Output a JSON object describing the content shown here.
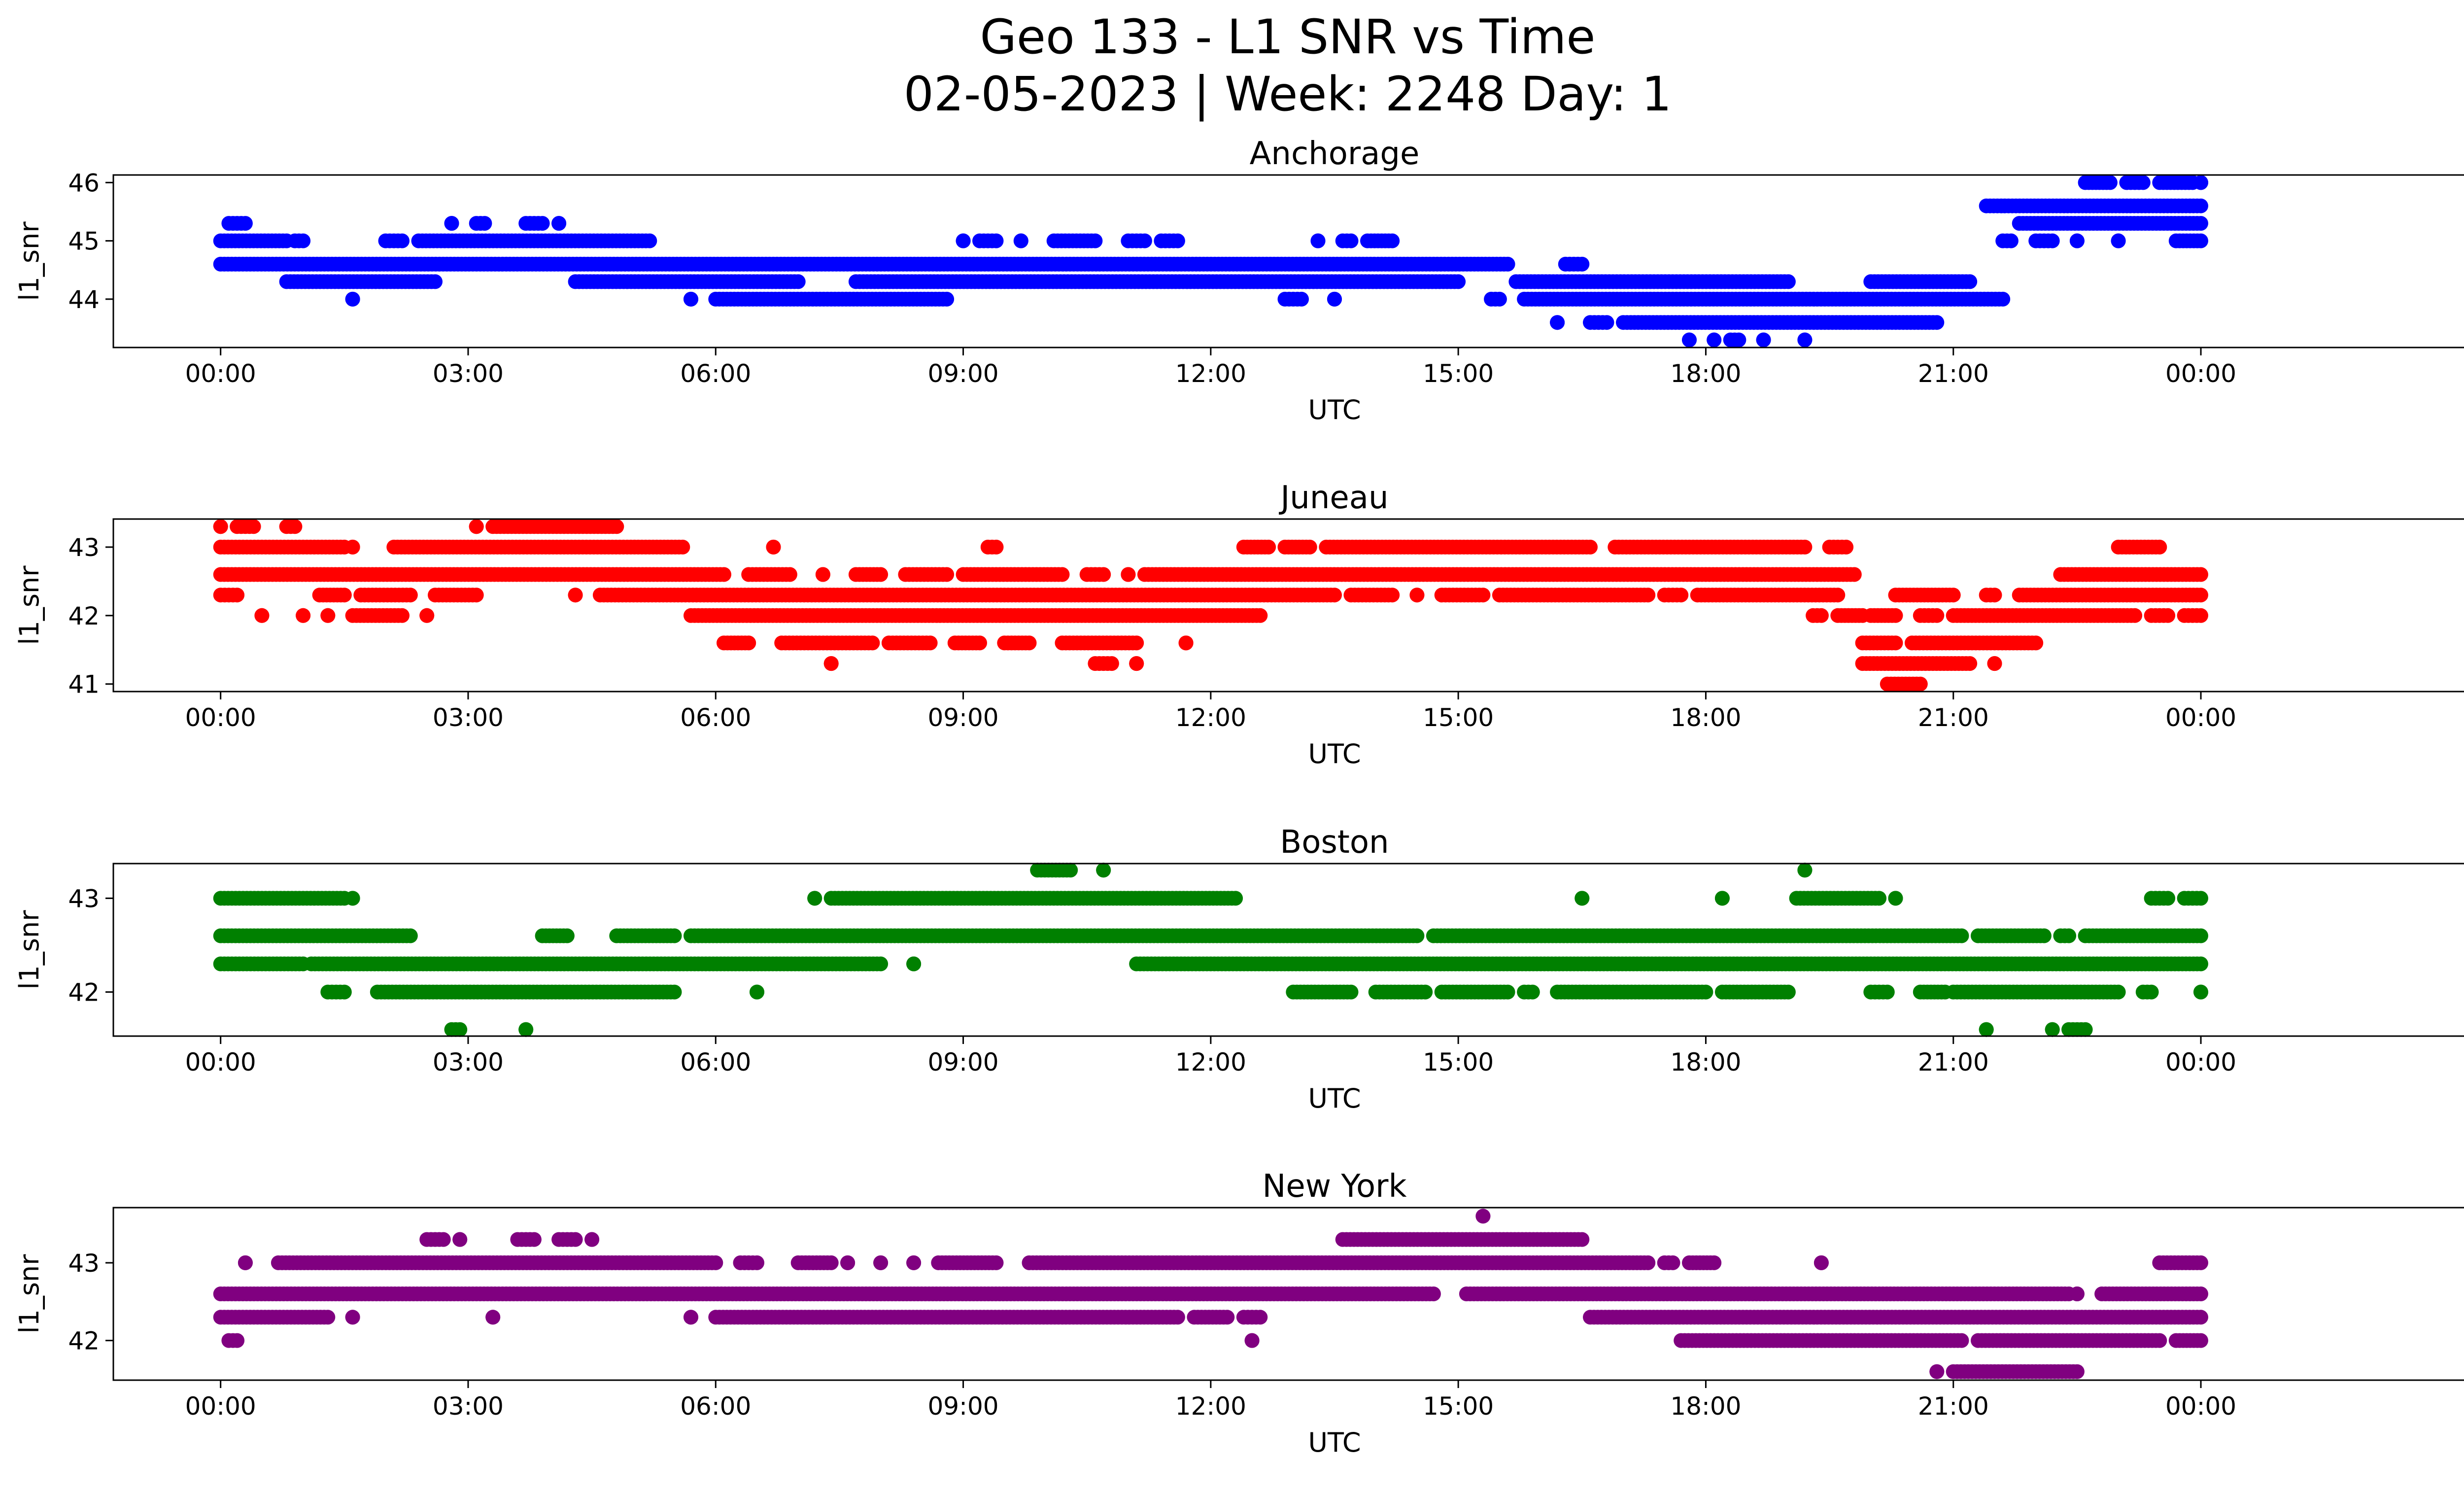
{
  "figure": {
    "title_line1": "Geo 133 - L1 SNR vs Time",
    "title_line2": "02-05-2023 | Week: 2248 Day: 1"
  },
  "chart_data": [
    {
      "type": "scatter",
      "title": "Anchorage",
      "xlabel": "UTC",
      "ylabel": "l1_snr",
      "color": "#0000ff",
      "xlim": [
        -1.3,
        28.3
      ],
      "ylim": [
        43.17,
        46.13
      ],
      "xticks": [
        0,
        3,
        6,
        9,
        12,
        15,
        18,
        21,
        24
      ],
      "xtick_labels": [
        "00:00",
        "03:00",
        "06:00",
        "09:00",
        "12:00",
        "15:00",
        "18:00",
        "21:00",
        "00:00"
      ],
      "yticks": [
        44,
        45,
        46
      ],
      "series": [
        {
          "y": 44.6,
          "ranges": [
            [
              0,
              15.6
            ],
            [
              16.3,
              16.5
            ]
          ]
        },
        {
          "y": 45.0,
          "ranges": [
            [
              0,
              0.8
            ],
            [
              0.9,
              1.0
            ],
            [
              2.0,
              2.2
            ],
            [
              2.4,
              5.2
            ],
            [
              9.0,
              9.0
            ],
            [
              9.2,
              9.4
            ],
            [
              9.7,
              9.7
            ],
            [
              10.1,
              10.6
            ],
            [
              11.0,
              11.2
            ],
            [
              11.4,
              11.6
            ],
            [
              13.3,
              13.3
            ],
            [
              13.6,
              13.7
            ],
            [
              13.9,
              14.2
            ],
            [
              21.6,
              21.7
            ],
            [
              22.0,
              22.2
            ],
            [
              22.5,
              22.5
            ],
            [
              23.0,
              23.0
            ],
            [
              23.7,
              24.0
            ]
          ]
        },
        {
          "y": 44.3,
          "ranges": [
            [
              0.8,
              2.6
            ],
            [
              4.3,
              7.0
            ],
            [
              7.7,
              15.0
            ],
            [
              15.7,
              19.0
            ],
            [
              20.0,
              21.2
            ]
          ]
        },
        {
          "y": 44.0,
          "ranges": [
            [
              1.6,
              1.6
            ],
            [
              5.7,
              5.7
            ],
            [
              6.0,
              8.8
            ],
            [
              12.9,
              13.1
            ],
            [
              13.5,
              13.5
            ],
            [
              15.4,
              15.5
            ],
            [
              15.8,
              21.6
            ]
          ]
        },
        {
          "y": 43.6,
          "ranges": [
            [
              16.2,
              16.2
            ],
            [
              16.6,
              16.8
            ],
            [
              17.0,
              20.8
            ]
          ]
        },
        {
          "y": 43.3,
          "ranges": [
            [
              17.8,
              17.8
            ],
            [
              18.1,
              18.1
            ],
            [
              18.3,
              18.4
            ],
            [
              18.7,
              18.7
            ],
            [
              19.2,
              19.2
            ]
          ]
        },
        {
          "y": 45.3,
          "ranges": [
            [
              0.1,
              0.3
            ],
            [
              2.8,
              2.8
            ],
            [
              3.1,
              3.2
            ],
            [
              3.7,
              3.9
            ],
            [
              4.1,
              4.1
            ],
            [
              21.8,
              24.0
            ]
          ]
        },
        {
          "y": 45.6,
          "ranges": [
            [
              21.4,
              24.0
            ]
          ]
        },
        {
          "y": 46.0,
          "ranges": [
            [
              22.6,
              22.9
            ],
            [
              23.1,
              23.3
            ],
            [
              23.5,
              23.9
            ],
            [
              24.0,
              24.0
            ]
          ]
        }
      ]
    },
    {
      "type": "scatter",
      "title": "Juneau",
      "xlabel": "UTC",
      "ylabel": "l1_snr",
      "color": "#ff0000",
      "xlim": [
        -1.3,
        28.3
      ],
      "ylim": [
        40.89,
        43.41
      ],
      "xticks": [
        0,
        3,
        6,
        9,
        12,
        15,
        18,
        21,
        24
      ],
      "xtick_labels": [
        "00:00",
        "03:00",
        "06:00",
        "09:00",
        "12:00",
        "15:00",
        "18:00",
        "21:00",
        "00:00"
      ],
      "yticks": [
        41,
        42,
        43
      ],
      "series": [
        {
          "y": 42.6,
          "ranges": [
            [
              0,
              6.1
            ],
            [
              6.4,
              6.9
            ],
            [
              7.3,
              7.3
            ],
            [
              7.7,
              8.0
            ],
            [
              8.3,
              8.8
            ],
            [
              9.0,
              10.2
            ],
            [
              10.5,
              10.7
            ],
            [
              11.0,
              11.0
            ],
            [
              11.2,
              19.8
            ],
            [
              22.3,
              24.0
            ]
          ]
        },
        {
          "y": 43.0,
          "ranges": [
            [
              0,
              1.5
            ],
            [
              1.6,
              1.6
            ],
            [
              2.1,
              5.6
            ],
            [
              6.7,
              6.7
            ],
            [
              9.3,
              9.4
            ],
            [
              12.4,
              12.7
            ],
            [
              12.9,
              13.2
            ],
            [
              13.4,
              16.6
            ],
            [
              16.9,
              19.2
            ],
            [
              19.5,
              19.7
            ],
            [
              23.0,
              23.5
            ]
          ]
        },
        {
          "y": 42.3,
          "ranges": [
            [
              0,
              0.2
            ],
            [
              1.2,
              1.5
            ],
            [
              1.7,
              2.3
            ],
            [
              2.6,
              3.1
            ],
            [
              4.3,
              4.3
            ],
            [
              4.6,
              13.5
            ],
            [
              13.7,
              14.2
            ],
            [
              14.5,
              14.5
            ],
            [
              14.8,
              15.3
            ],
            [
              15.5,
              17.3
            ],
            [
              17.5,
              17.7
            ],
            [
              17.9,
              19.6
            ],
            [
              20.3,
              21.0
            ],
            [
              21.4,
              21.5
            ],
            [
              21.8,
              24.0
            ]
          ]
        },
        {
          "y": 42.0,
          "ranges": [
            [
              0.5,
              0.5
            ],
            [
              1.0,
              1.0
            ],
            [
              1.3,
              1.3
            ],
            [
              1.6,
              2.2
            ],
            [
              2.5,
              2.5
            ],
            [
              5.7,
              12.6
            ],
            [
              19.3,
              19.4
            ],
            [
              19.6,
              19.9
            ],
            [
              20.0,
              20.3
            ],
            [
              20.6,
              20.8
            ],
            [
              21.0,
              23.2
            ],
            [
              23.4,
              23.6
            ],
            [
              23.8,
              24.0
            ]
          ]
        },
        {
          "y": 41.6,
          "ranges": [
            [
              6.1,
              6.4
            ],
            [
              6.8,
              7.9
            ],
            [
              8.1,
              8.6
            ],
            [
              8.9,
              9.2
            ],
            [
              9.5,
              9.8
            ],
            [
              10.2,
              11.1
            ],
            [
              11.7,
              11.7
            ],
            [
              19.9,
              20.3
            ],
            [
              20.5,
              22.0
            ]
          ]
        },
        {
          "y": 41.3,
          "ranges": [
            [
              7.4,
              7.4
            ],
            [
              10.6,
              10.8
            ],
            [
              11.1,
              11.1
            ],
            [
              19.9,
              21.2
            ],
            [
              21.5,
              21.5
            ]
          ]
        },
        {
          "y": 41.0,
          "ranges": [
            [
              20.2,
              20.6
            ]
          ]
        },
        {
          "y": 43.3,
          "ranges": [
            [
              0,
              0.0
            ],
            [
              0.2,
              0.4
            ],
            [
              0.8,
              0.9
            ],
            [
              3.1,
              3.1
            ],
            [
              3.3,
              4.8
            ]
          ]
        }
      ]
    },
    {
      "type": "scatter",
      "title": "Boston",
      "xlabel": "UTC",
      "ylabel": "l1_snr",
      "color": "#008000",
      "xlim": [
        -1.3,
        28.3
      ],
      "ylim": [
        41.53,
        43.37
      ],
      "xticks": [
        0,
        3,
        6,
        9,
        12,
        15,
        18,
        21,
        24
      ],
      "xtick_labels": [
        "00:00",
        "03:00",
        "06:00",
        "09:00",
        "12:00",
        "15:00",
        "18:00",
        "21:00",
        "00:00"
      ],
      "yticks": [
        42,
        43
      ],
      "series": [
        {
          "y": 42.6,
          "ranges": [
            [
              0,
              2.3
            ],
            [
              3.9,
              4.2
            ],
            [
              4.8,
              5.5
            ],
            [
              5.7,
              14.5
            ],
            [
              14.7,
              21.1
            ],
            [
              21.3,
              22.1
            ],
            [
              22.3,
              22.4
            ],
            [
              22.6,
              24.0
            ]
          ]
        },
        {
          "y": 42.3,
          "ranges": [
            [
              0,
              1.0
            ],
            [
              1.1,
              8.0
            ],
            [
              8.4,
              8.4
            ],
            [
              11.1,
              24.0
            ]
          ]
        },
        {
          "y": 43.0,
          "ranges": [
            [
              0,
              1.5
            ],
            [
              1.6,
              1.6
            ],
            [
              7.2,
              7.2
            ],
            [
              7.4,
              12.3
            ],
            [
              16.5,
              16.5
            ],
            [
              18.2,
              18.2
            ],
            [
              19.1,
              20.1
            ],
            [
              20.3,
              20.3
            ],
            [
              23.4,
              23.6
            ],
            [
              23.8,
              24.0
            ]
          ]
        },
        {
          "y": 42.0,
          "ranges": [
            [
              1.3,
              1.5
            ],
            [
              1.9,
              5.5
            ],
            [
              6.5,
              6.5
            ],
            [
              13.0,
              13.7
            ],
            [
              14.0,
              14.6
            ],
            [
              14.8,
              15.6
            ],
            [
              15.8,
              15.9
            ],
            [
              16.2,
              18.0
            ],
            [
              18.2,
              19.0
            ],
            [
              20.0,
              20.2
            ],
            [
              20.6,
              20.9
            ],
            [
              21.0,
              23.0
            ],
            [
              23.3,
              23.4
            ],
            [
              24.0,
              24.0
            ]
          ]
        },
        {
          "y": 41.6,
          "ranges": [
            [
              2.8,
              2.9
            ],
            [
              3.7,
              3.7
            ],
            [
              21.4,
              21.4
            ],
            [
              22.2,
              22.2
            ],
            [
              22.4,
              22.6
            ]
          ]
        },
        {
          "y": 43.3,
          "ranges": [
            [
              9.9,
              10.3
            ],
            [
              10.7,
              10.7
            ],
            [
              19.2,
              19.2
            ]
          ]
        }
      ]
    },
    {
      "type": "scatter",
      "title": "New York",
      "xlabel": "UTC",
      "ylabel": "l1_snr",
      "color": "#800080",
      "xlim": [
        -1.3,
        28.3
      ],
      "ylim": [
        41.49,
        43.71
      ],
      "xticks": [
        0,
        3,
        6,
        9,
        12,
        15,
        18,
        21,
        24
      ],
      "xtick_labels": [
        "00:00",
        "03:00",
        "06:00",
        "09:00",
        "12:00",
        "15:00",
        "18:00",
        "21:00",
        "00:00"
      ],
      "yticks": [
        42,
        43
      ],
      "series": [
        {
          "y": 42.6,
          "ranges": [
            [
              0,
              14.7
            ],
            [
              15.1,
              22.4
            ],
            [
              22.5,
              22.5
            ],
            [
              22.8,
              24.0
            ]
          ]
        },
        {
          "y": 42.3,
          "ranges": [
            [
              0,
              1.3
            ],
            [
              1.6,
              1.6
            ],
            [
              3.3,
              3.3
            ],
            [
              5.7,
              5.7
            ],
            [
              6.0,
              11.6
            ],
            [
              11.8,
              12.2
            ],
            [
              12.4,
              12.6
            ],
            [
              16.6,
              24.0
            ]
          ]
        },
        {
          "y": 42.0,
          "ranges": [
            [
              0.1,
              0.2
            ],
            [
              12.5,
              12.5
            ],
            [
              17.7,
              21.1
            ],
            [
              21.3,
              23.5
            ],
            [
              23.7,
              24.0
            ]
          ]
        },
        {
          "y": 43.0,
          "ranges": [
            [
              0.3,
              0.3
            ],
            [
              0.7,
              6.0
            ],
            [
              6.3,
              6.5
            ],
            [
              7.0,
              7.4
            ],
            [
              7.6,
              7.6
            ],
            [
              8.0,
              8.0
            ],
            [
              8.4,
              8.4
            ],
            [
              8.7,
              9.4
            ],
            [
              9.8,
              17.3
            ],
            [
              17.5,
              17.6
            ],
            [
              17.8,
              18.1
            ],
            [
              19.4,
              19.4
            ],
            [
              23.5,
              24.0
            ]
          ]
        },
        {
          "y": 43.3,
          "ranges": [
            [
              2.5,
              2.7
            ],
            [
              2.9,
              2.9
            ],
            [
              3.6,
              3.8
            ],
            [
              4.1,
              4.3
            ],
            [
              4.5,
              4.5
            ],
            [
              13.6,
              16.5
            ]
          ]
        },
        {
          "y": 43.6,
          "ranges": [
            [
              15.3,
              15.3
            ]
          ]
        },
        {
          "y": 41.6,
          "ranges": [
            [
              20.8,
              20.8
            ],
            [
              21.0,
              22.5
            ]
          ]
        }
      ]
    }
  ]
}
